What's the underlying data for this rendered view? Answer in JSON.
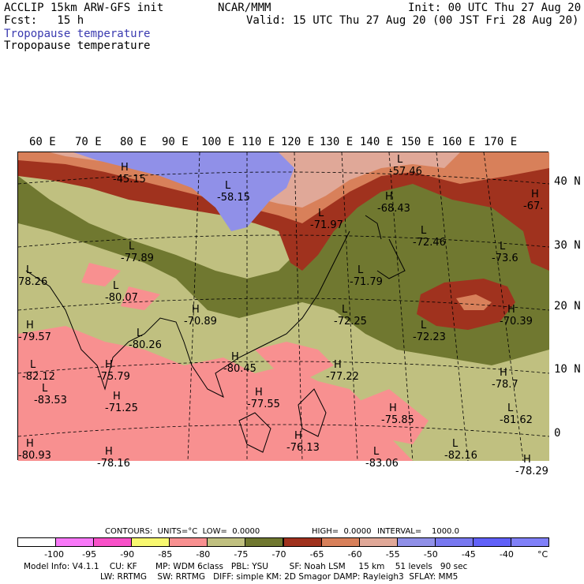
{
  "header": {
    "left_line1": "ACCLIP 15km ARW-GFS init",
    "left_line2": "Fcst:   15 h",
    "center": "NCAR/MMM",
    "right_line1": "Init: 00 UTC Thu 27 Aug 20",
    "right_line2": "Valid: 15 UTC Thu 27 Aug 20 (00 JST Fri 28 Aug 20)",
    "field_title_blue": "Tropopause temperature",
    "field_title_black": "Tropopause temperature"
  },
  "longitude_labels": [
    "60 E",
    "70 E",
    "80 E",
    "90 E",
    "100 E",
    "110 E",
    "120 E",
    "130 E",
    "140 E",
    "150 E",
    "160 E",
    "170 E"
  ],
  "latitude_labels": [
    "40 N",
    "30 N",
    "20 N",
    "10 N",
    "0"
  ],
  "map": {
    "colors": {
      "above_neg50": "#9090e8",
      "neg55": "#e0a898",
      "neg60": "#d8805a",
      "neg65": "#a0321e",
      "neg70": "#707830",
      "neg75": "#c0c080",
      "neg80": "#f89090",
      "neg85": "#f8a0a0"
    },
    "centers": [
      {
        "letter": "H",
        "value": "-45.15"
      },
      {
        "letter": "L",
        "value": "-58.15"
      },
      {
        "letter": "L",
        "value": "-57.46"
      },
      {
        "letter": "H",
        "value": "-68.43"
      },
      {
        "letter": "H",
        "value": "-67."
      },
      {
        "letter": "L",
        "value": "-71.97"
      },
      {
        "letter": "L",
        "value": "-77.89"
      },
      {
        "letter": "L",
        "value": "-72.46"
      },
      {
        "letter": "L",
        "value": "-73.6"
      },
      {
        "letter": "L",
        "value": "78.26"
      },
      {
        "letter": "L",
        "value": "-71.79"
      },
      {
        "letter": "L",
        "value": "-80.07"
      },
      {
        "letter": "H",
        "value": "-70.89"
      },
      {
        "letter": "L",
        "value": "-72.25"
      },
      {
        "letter": "L",
        "value": "-72.23"
      },
      {
        "letter": "H",
        "value": "-70.39"
      },
      {
        "letter": "H",
        "value": "-79.57"
      },
      {
        "letter": "L",
        "value": "-80.26"
      },
      {
        "letter": "H",
        "value": "-80.45"
      },
      {
        "letter": "H",
        "value": "-77.22"
      },
      {
        "letter": "H",
        "value": "-78.7"
      },
      {
        "letter": "L",
        "value": "-83.53"
      },
      {
        "letter": "H",
        "value": "-71.25"
      },
      {
        "letter": "H",
        "value": "-77.55"
      },
      {
        "letter": "H",
        "value": "-75.85"
      },
      {
        "letter": "L",
        "value": "-81.62"
      },
      {
        "letter": "H",
        "value": "-80.93"
      },
      {
        "letter": "H",
        "value": "-76.13"
      },
      {
        "letter": "L",
        "value": "-83.06"
      },
      {
        "letter": "L",
        "value": "-82.16"
      },
      {
        "letter": "H",
        "value": "-78.16"
      },
      {
        "letter": "H",
        "value": "-78.29"
      },
      {
        "letter": "L",
        "value": "-82.12"
      },
      {
        "letter": "H",
        "value": "-75.79"
      }
    ]
  },
  "contour_info": {
    "label": "CONTOURS:  UNITS=°C  LOW=  0.0000",
    "high": "HIGH=  0.0000",
    "interval": "INTERVAL=    1000.0"
  },
  "colorbar": {
    "colors": [
      "#ffffff",
      "#f878f8",
      "#f850c8",
      "#f8f870",
      "#f89090",
      "#c0c080",
      "#707830",
      "#a0321e",
      "#d8805a",
      "#e0a898",
      "#9090e8",
      "#7878f0",
      "#6060f8",
      "#8080f8"
    ],
    "ticks": [
      "-100",
      "-95",
      "-90",
      "-85",
      "-80",
      "-75",
      "-70",
      "-65",
      "-60",
      "-55",
      "-50",
      "-45",
      "-40",
      "°C"
    ]
  },
  "model_info": {
    "line1": "Model Info: V4.1.1    CU: KF       MP: WDM 6class   PBL: YSU        SF: Noah LSM     15 km    51 levels   90 sec",
    "line2": "LW: RRTMG    SW: RRTMG   DIFF: simple KM: 2D Smagor DAMP: Rayleigh3  SFLAY: MM5"
  }
}
